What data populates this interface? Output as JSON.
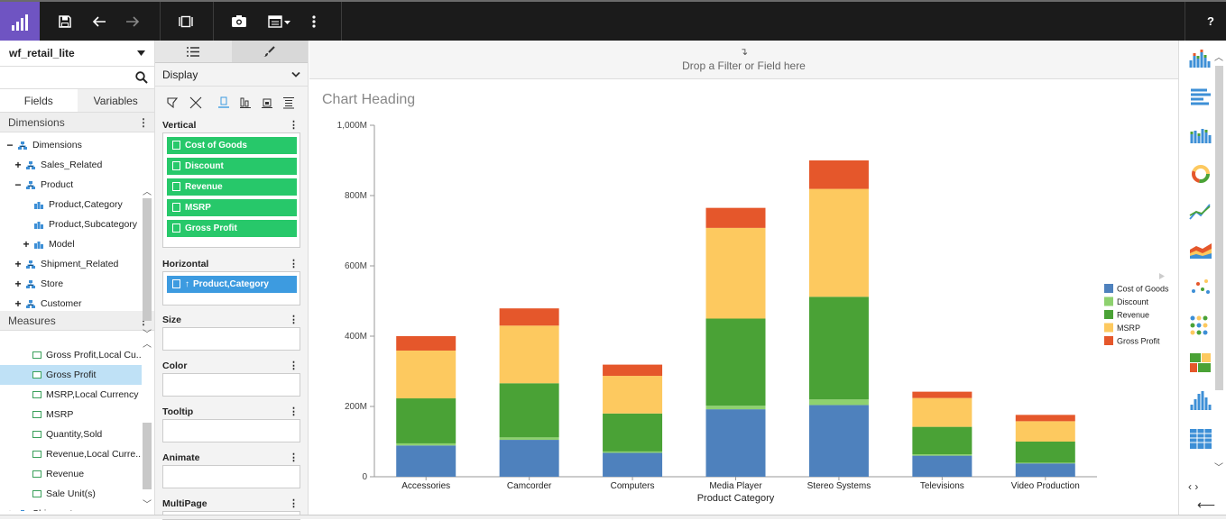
{
  "toolbar": {
    "help_label": "?"
  },
  "datasource": {
    "name": "wf_retail_lite"
  },
  "left_tabs": [
    "Fields",
    "Variables"
  ],
  "dimensions": {
    "header": "Dimensions",
    "nodes": [
      {
        "pm": "−",
        "label": "Dimensions",
        "level": 0,
        "kind": "dim"
      },
      {
        "pm": "+",
        "label": "Sales_Related",
        "level": 1,
        "kind": "dim"
      },
      {
        "pm": "−",
        "label": "Product",
        "level": 1,
        "kind": "dim"
      },
      {
        "pm": "",
        "label": "Product,Category",
        "level": 2,
        "kind": "field"
      },
      {
        "pm": "",
        "label": "Product,Subcategory",
        "level": 2,
        "kind": "field"
      },
      {
        "pm": "+",
        "label": "Model",
        "level": 2,
        "kind": "field"
      },
      {
        "pm": "+",
        "label": "Shipment_Related",
        "level": 1,
        "kind": "dim"
      },
      {
        "pm": "+",
        "label": "Store",
        "level": 1,
        "kind": "dim"
      },
      {
        "pm": "+",
        "label": "Customer",
        "level": 1,
        "kind": "dim"
      }
    ]
  },
  "measures": {
    "header": "Measures",
    "items": [
      "Gross Profit,Local Cu...",
      "Gross Profit",
      "MSRP,Local Currency",
      "MSRP",
      "Quantity,Sold",
      "Revenue,Local Curre...",
      "Revenue",
      "Sale Unit(s)"
    ],
    "selected_index": 1,
    "footer_node": {
      "pm": "+",
      "label": "Shipments"
    }
  },
  "display_panel": {
    "title": "Display",
    "vertical": {
      "label": "Vertical",
      "fields": [
        "Cost of Goods",
        "Discount",
        "Revenue",
        "MSRP",
        "Gross Profit"
      ]
    },
    "horizontal": {
      "label": "Horizontal",
      "fields": [
        "Product,Category"
      ]
    },
    "empty_buckets": [
      "Size",
      "Color",
      "Tooltip",
      "Animate",
      "MultiPage"
    ]
  },
  "canvas": {
    "filter_hint": "Drop a Filter or Field here",
    "chart_heading": "Chart Heading"
  },
  "chart_data": {
    "type": "bar",
    "stacked": true,
    "categories": [
      "Accessories",
      "Camcorder",
      "Computers",
      "Media Player",
      "Stereo Systems",
      "Televisions",
      "Video Production"
    ],
    "series": [
      {
        "name": "Cost of Goods",
        "color": "#4e81bd",
        "values": [
          89,
          105,
          68,
          192,
          204,
          60,
          38
        ]
      },
      {
        "name": "Discount",
        "color": "#8ed16f",
        "values": [
          6,
          7,
          4,
          10,
          16,
          4,
          2
        ]
      },
      {
        "name": "Revenue",
        "color": "#4aa236",
        "values": [
          128,
          154,
          108,
          248,
          292,
          78,
          60
        ]
      },
      {
        "name": "MSRP",
        "color": "#fdc95f",
        "values": [
          136,
          164,
          107,
          258,
          307,
          82,
          58
        ]
      },
      {
        "name": "Gross Profit",
        "color": "#e5572b",
        "values": [
          41,
          49,
          32,
          57,
          81,
          18,
          18
        ]
      }
    ],
    "xlabel": "Product Category",
    "ylabel": "",
    "ylim": [
      0,
      1000
    ],
    "y_ticks": [
      0,
      200,
      400,
      600,
      800,
      1000
    ],
    "y_tick_labels": [
      "0",
      "200M",
      "400M",
      "600M",
      "800M",
      "1,000M"
    ],
    "legend_position": "right"
  },
  "chart_types": [
    "column-chart-icon",
    "bar-chart-icon",
    "stacked-column-icon",
    "ring-pie-icon",
    "line-chart-icon",
    "area-chart-icon",
    "scatter-chart-icon",
    "matrix-chart-icon",
    "treemap-icon",
    "histogram-icon",
    "table-grid-icon"
  ]
}
